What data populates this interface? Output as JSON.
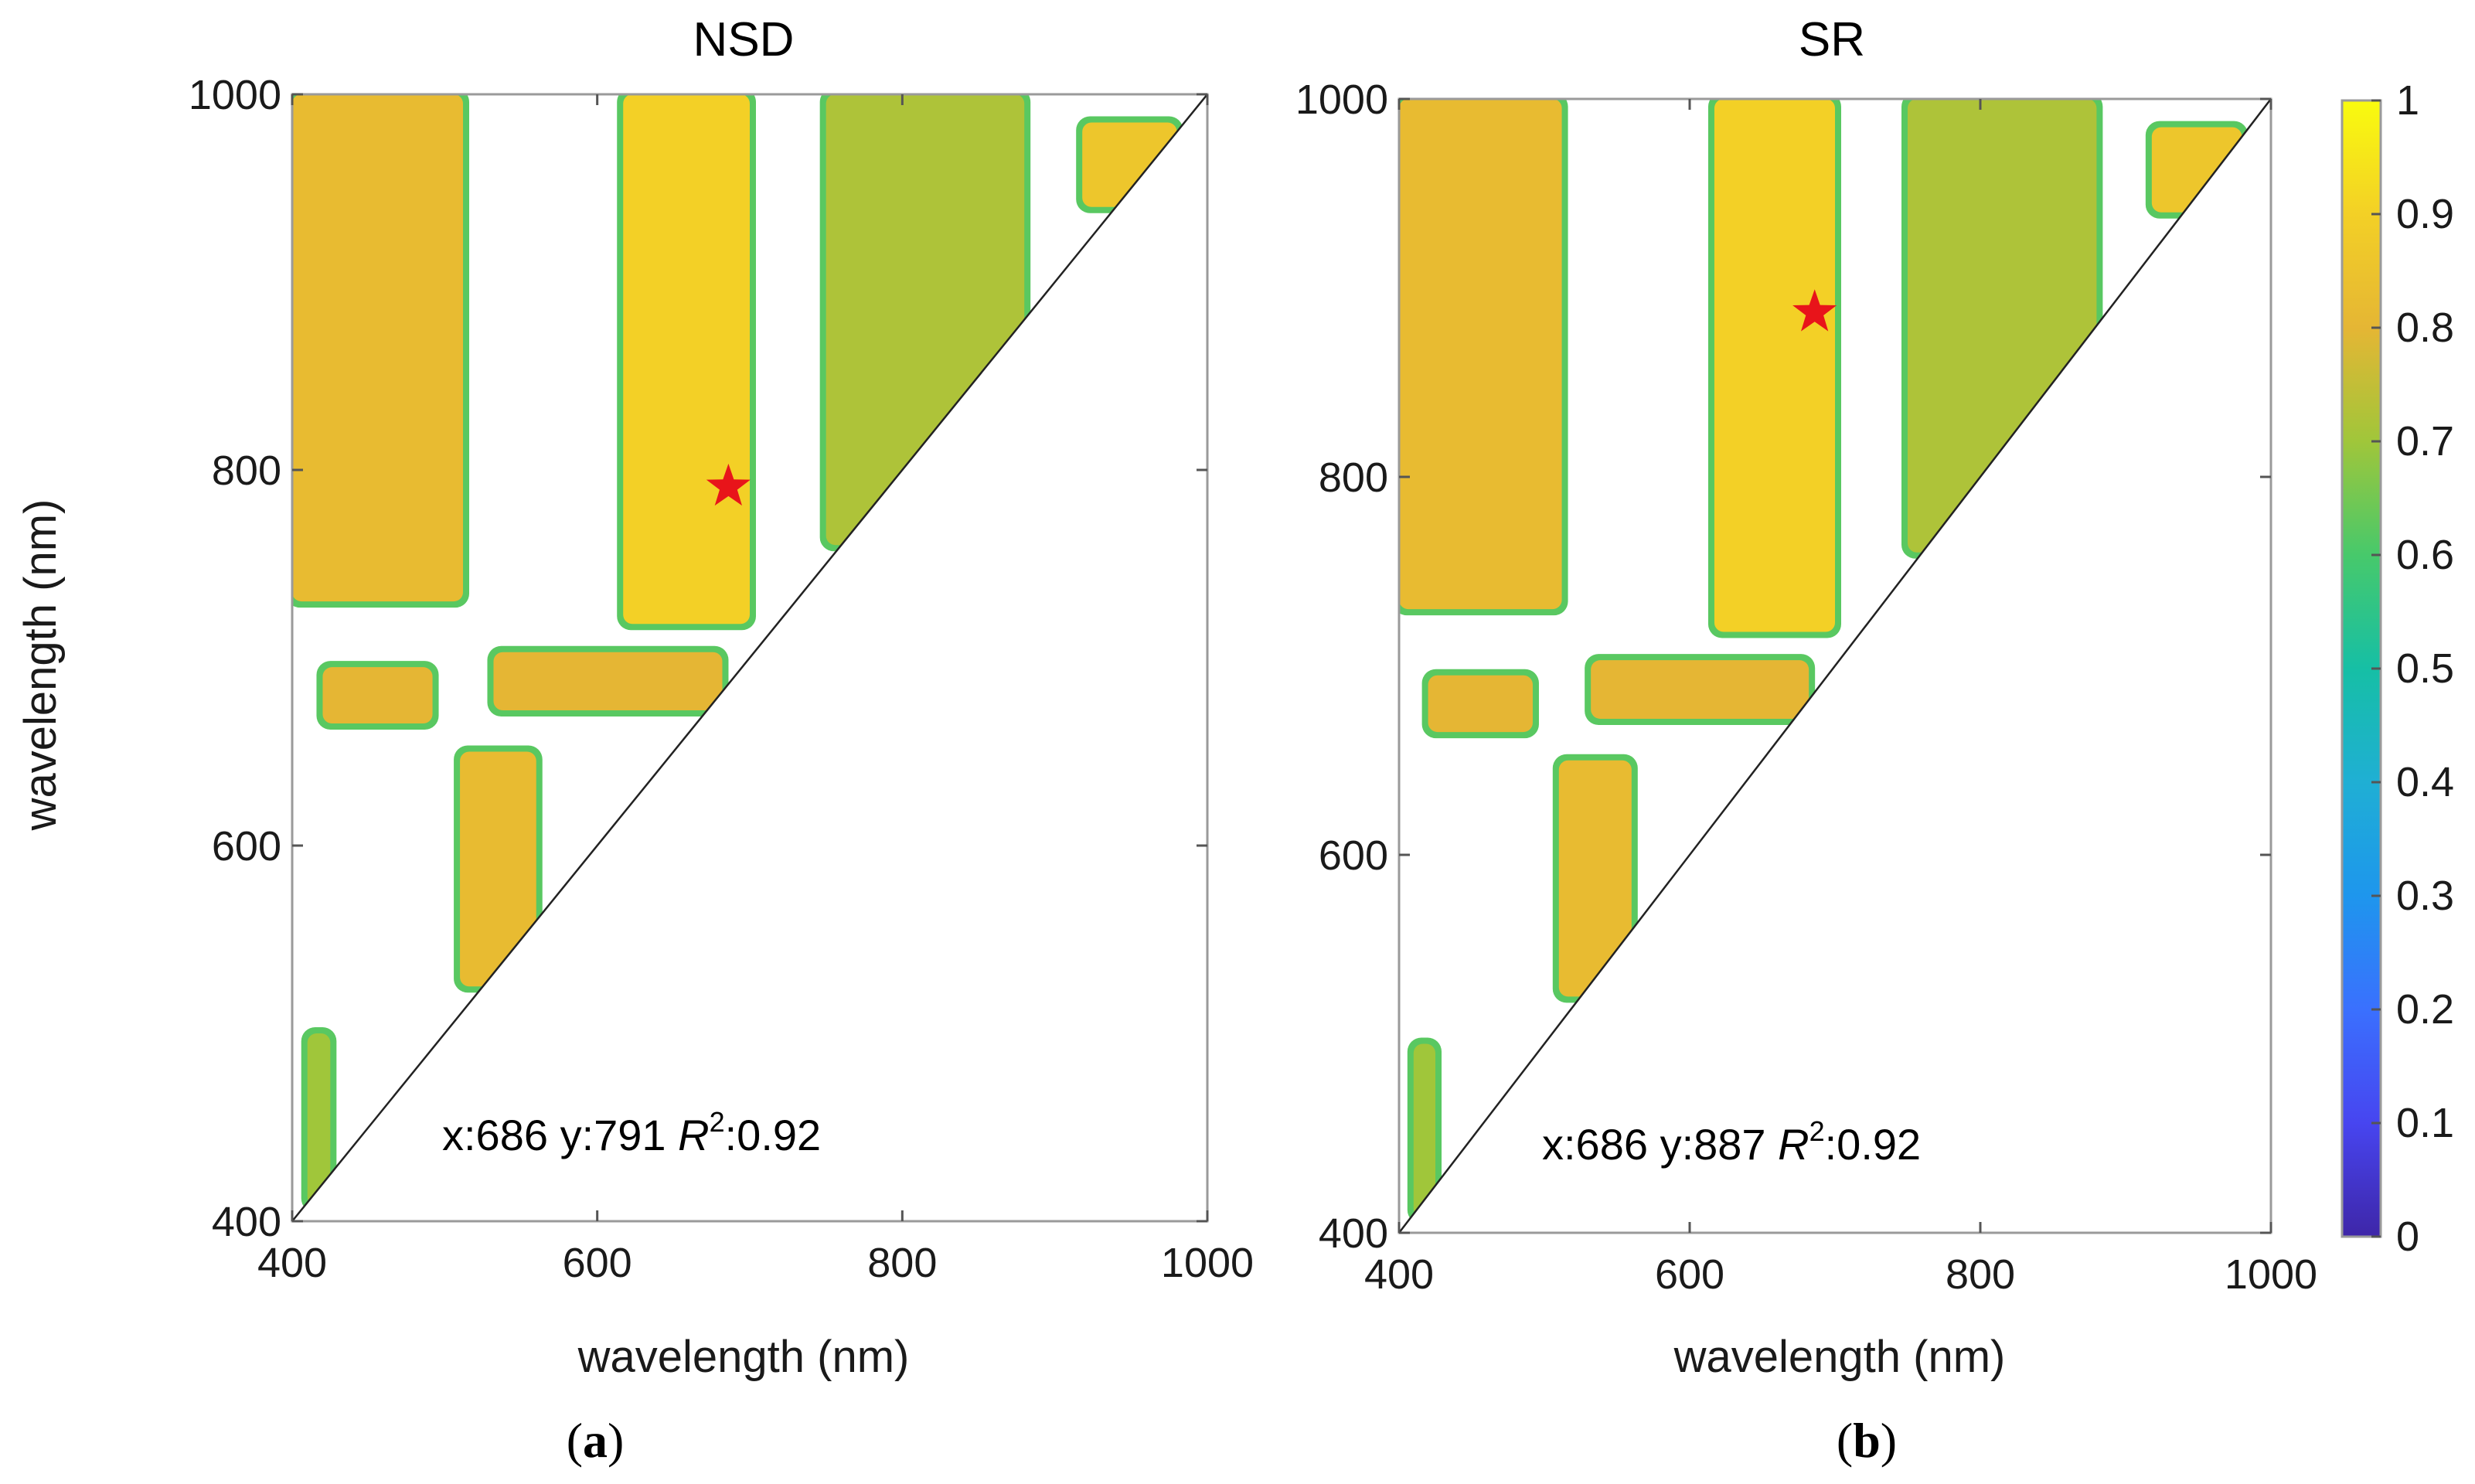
{
  "chart_data": [
    {
      "type": "heatmap",
      "title": "NSD",
      "xlabel": "wavelength (nm)",
      "ylabel": "wavelength (nm)",
      "xlim": [
        400,
        1000
      ],
      "ylim": [
        400,
        1000
      ],
      "xticks": [
        400,
        600,
        800,
        1000
      ],
      "yticks": [
        400,
        600,
        800,
        1000
      ],
      "best_point": {
        "x": 686,
        "y": 791
      },
      "annotation": {
        "x_text": "x:686",
        "y_text": "y:791",
        "r2_label": "R",
        "r2_sup": "2",
        "r2_value": ":0.92"
      },
      "caption": "a",
      "regions": [
        {
          "x": [
            400,
            512
          ],
          "y": [
            730,
            1000
          ],
          "value": 0.82
        },
        {
          "x": [
            617,
            700
          ],
          "y": [
            718,
            1000
          ],
          "value": 0.9
        },
        {
          "x": [
            750,
            880
          ],
          "y": [
            760,
            1000
          ],
          "value": 0.72
        },
        {
          "x": [
            918,
            980
          ],
          "y": [
            940,
            985
          ],
          "value": 0.86
        },
        {
          "x": [
            420,
            492
          ],
          "y": [
            665,
            695
          ],
          "value": 0.8
        },
        {
          "x": [
            532,
            682
          ],
          "y": [
            672,
            703
          ],
          "value": 0.8
        },
        {
          "x": [
            510,
            560
          ],
          "y": [
            525,
            650
          ],
          "value": 0.82
        },
        {
          "x": [
            410,
            425
          ],
          "y": [
            408,
            500
          ],
          "value": 0.7
        }
      ]
    },
    {
      "type": "heatmap",
      "title": "SR",
      "xlabel": "wavelength (nm)",
      "ylabel": "",
      "xlim": [
        400,
        1000
      ],
      "ylim": [
        400,
        1000
      ],
      "xticks": [
        400,
        600,
        800,
        1000
      ],
      "yticks": [
        400,
        600,
        800,
        1000
      ],
      "best_point": {
        "x": 686,
        "y": 887
      },
      "annotation": {
        "x_text": "x:686",
        "y_text": "y:887",
        "r2_label": "R",
        "r2_sup": "2",
        "r2_value": ":0.92"
      },
      "caption": "b",
      "regions": [
        {
          "x": [
            400,
            512
          ],
          "y": [
            730,
            1000
          ],
          "value": 0.82
        },
        {
          "x": [
            617,
            700
          ],
          "y": [
            718,
            1000
          ],
          "value": 0.9
        },
        {
          "x": [
            750,
            880
          ],
          "y": [
            760,
            1000
          ],
          "value": 0.72
        },
        {
          "x": [
            918,
            980
          ],
          "y": [
            940,
            985
          ],
          "value": 0.86
        },
        {
          "x": [
            420,
            492
          ],
          "y": [
            665,
            695
          ],
          "value": 0.8
        },
        {
          "x": [
            532,
            682
          ],
          "y": [
            672,
            703
          ],
          "value": 0.8
        },
        {
          "x": [
            510,
            560
          ],
          "y": [
            525,
            650
          ],
          "value": 0.82
        },
        {
          "x": [
            410,
            425
          ],
          "y": [
            408,
            500
          ],
          "value": 0.7
        }
      ]
    }
  ],
  "colorbar": {
    "range": [
      0,
      1
    ],
    "ticks": [
      "0",
      "0.1",
      "0.2",
      "0.3",
      "0.4",
      "0.5",
      "0.6",
      "0.7",
      "0.8",
      "0.9",
      "1"
    ],
    "colormap": "parula",
    "colors": [
      "#3e26a8",
      "#4745f0",
      "#3a70fe",
      "#1e96ed",
      "#1fafd4",
      "#16bfa5",
      "#47c96b",
      "#a0c63a",
      "#e5b634",
      "#f3d026",
      "#f9fb0e"
    ]
  },
  "marker_color": "#e8141a"
}
